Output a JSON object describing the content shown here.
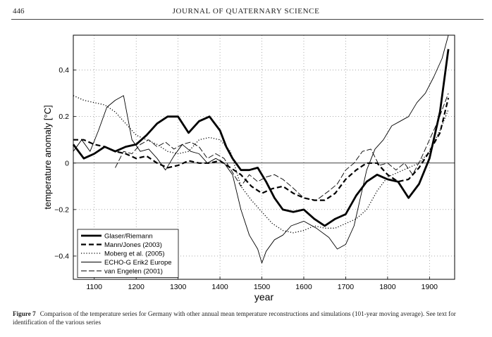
{
  "header": {
    "page_number": "446",
    "journal": "JOURNAL OF QUATERNARY SCIENCE"
  },
  "caption": {
    "label": "Figure 7",
    "text": "Comparison of the temperature series for Germany with other annual mean temperature reconstructions and simulations (101-year moving average). See text for identification of the various series"
  },
  "chart_data": {
    "type": "line",
    "title": "",
    "xlabel": "year",
    "ylabel": "temperature anomaly [°C]",
    "xlim": [
      1050,
      1960
    ],
    "ylim": [
      -0.5,
      0.55
    ],
    "xticks": [
      1100,
      1200,
      1300,
      1400,
      1500,
      1600,
      1700,
      1800,
      1900
    ],
    "yticks": [
      -0.4,
      -0.2,
      0,
      0.2,
      0.4
    ],
    "ytick_labels": [
      "−0.4",
      "−0.2",
      "0",
      "0.2",
      "0.4"
    ],
    "grid": true,
    "legend_position": "bottom-left",
    "series": [
      {
        "name": "Glaser/Riemann",
        "style": "thick-solid",
        "x": [
          1050,
          1075,
          1100,
          1125,
          1150,
          1175,
          1200,
          1225,
          1250,
          1275,
          1300,
          1325,
          1350,
          1375,
          1400,
          1415,
          1430,
          1450,
          1470,
          1490,
          1510,
          1530,
          1550,
          1575,
          1600,
          1625,
          1650,
          1675,
          1700,
          1725,
          1750,
          1775,
          1800,
          1825,
          1850,
          1875,
          1900,
          1925,
          1945
        ],
        "y": [
          0.08,
          0.02,
          0.04,
          0.07,
          0.05,
          0.07,
          0.08,
          0.12,
          0.17,
          0.2,
          0.2,
          0.13,
          0.18,
          0.2,
          0.14,
          0.07,
          0.02,
          -0.03,
          -0.03,
          -0.02,
          -0.08,
          -0.15,
          -0.2,
          -0.21,
          -0.2,
          -0.24,
          -0.27,
          -0.24,
          -0.22,
          -0.14,
          -0.08,
          -0.05,
          -0.07,
          -0.08,
          -0.15,
          -0.09,
          0.02,
          0.22,
          0.49
        ]
      },
      {
        "name": "Mann/Jones (2003)",
        "style": "dashed",
        "x": [
          1050,
          1075,
          1100,
          1125,
          1150,
          1175,
          1200,
          1225,
          1250,
          1275,
          1300,
          1325,
          1350,
          1375,
          1400,
          1425,
          1450,
          1475,
          1500,
          1525,
          1550,
          1575,
          1600,
          1625,
          1650,
          1675,
          1700,
          1725,
          1750,
          1775,
          1800,
          1825,
          1850,
          1875,
          1900,
          1925,
          1945
        ],
        "y": [
          0.1,
          0.1,
          0.08,
          0.07,
          0.05,
          0.04,
          0.02,
          0.03,
          0.0,
          -0.02,
          -0.01,
          0.01,
          0.0,
          0.0,
          0.01,
          -0.02,
          -0.05,
          -0.1,
          -0.13,
          -0.11,
          -0.1,
          -0.13,
          -0.15,
          -0.16,
          -0.16,
          -0.13,
          -0.07,
          -0.03,
          0.0,
          0.0,
          -0.05,
          -0.08,
          -0.07,
          -0.02,
          0.05,
          0.13,
          0.28
        ]
      },
      {
        "name": "Moberg et al. (2005)",
        "style": "dotted",
        "x": [
          1050,
          1075,
          1100,
          1125,
          1150,
          1175,
          1200,
          1225,
          1250,
          1275,
          1300,
          1325,
          1350,
          1375,
          1400,
          1425,
          1450,
          1475,
          1500,
          1525,
          1550,
          1575,
          1600,
          1625,
          1650,
          1675,
          1700,
          1725,
          1750,
          1775,
          1800,
          1825,
          1850,
          1875,
          1900,
          1925,
          1945
        ],
        "y": [
          0.29,
          0.27,
          0.26,
          0.25,
          0.22,
          0.17,
          0.12,
          0.1,
          0.08,
          0.05,
          0.04,
          0.05,
          0.1,
          0.11,
          0.1,
          0.05,
          -0.1,
          -0.16,
          -0.21,
          -0.26,
          -0.29,
          -0.3,
          -0.29,
          -0.27,
          -0.28,
          -0.28,
          -0.26,
          -0.24,
          -0.2,
          -0.12,
          -0.06,
          -0.04,
          -0.02,
          0.0,
          0.05,
          0.14,
          0.23
        ]
      },
      {
        "name": "ECHO-G Erik2 Europe",
        "style": "thin-solid",
        "x": [
          1050,
          1070,
          1090,
          1110,
          1130,
          1150,
          1170,
          1190,
          1210,
          1230,
          1250,
          1270,
          1290,
          1310,
          1330,
          1350,
          1370,
          1390,
          1410,
          1430,
          1450,
          1470,
          1490,
          1500,
          1510,
          1530,
          1550,
          1570,
          1600,
          1630,
          1660,
          1680,
          1700,
          1720,
          1750,
          1770,
          1790,
          1810,
          1830,
          1850,
          1870,
          1890,
          1910,
          1930,
          1945
        ],
        "y": [
          0.05,
          0.1,
          0.05,
          0.14,
          0.24,
          0.27,
          0.29,
          0.1,
          0.05,
          0.06,
          0.02,
          -0.03,
          0.03,
          0.08,
          0.05,
          0.04,
          0.0,
          0.02,
          0.0,
          -0.05,
          -0.2,
          -0.31,
          -0.37,
          -0.43,
          -0.38,
          -0.33,
          -0.31,
          -0.27,
          -0.25,
          -0.28,
          -0.32,
          -0.37,
          -0.35,
          -0.27,
          -0.03,
          0.06,
          0.1,
          0.16,
          0.18,
          0.2,
          0.26,
          0.3,
          0.37,
          0.45,
          0.55
        ]
      },
      {
        "name": "van Engelen (2001)",
        "style": "long-dashed",
        "x": [
          1150,
          1170,
          1190,
          1210,
          1230,
          1250,
          1270,
          1290,
          1310,
          1330,
          1350,
          1370,
          1390,
          1410,
          1430,
          1450,
          1470,
          1490,
          1510,
          1530,
          1550,
          1570,
          1600,
          1630,
          1660,
          1680,
          1700,
          1720,
          1740,
          1760,
          1780,
          1800,
          1820,
          1840,
          1860,
          1880,
          1900,
          1920,
          1945
        ],
        "y": [
          -0.02,
          0.05,
          0.04,
          0.08,
          0.1,
          0.07,
          0.09,
          0.06,
          0.08,
          0.09,
          0.07,
          0.02,
          0.04,
          0.02,
          -0.04,
          -0.1,
          -0.05,
          -0.08,
          -0.06,
          -0.05,
          -0.07,
          -0.1,
          -0.15,
          -0.16,
          -0.12,
          -0.09,
          -0.03,
          0.0,
          0.05,
          0.06,
          -0.01,
          0.0,
          -0.03,
          0.0,
          -0.05,
          0.02,
          0.1,
          0.18,
          0.3
        ]
      }
    ]
  }
}
